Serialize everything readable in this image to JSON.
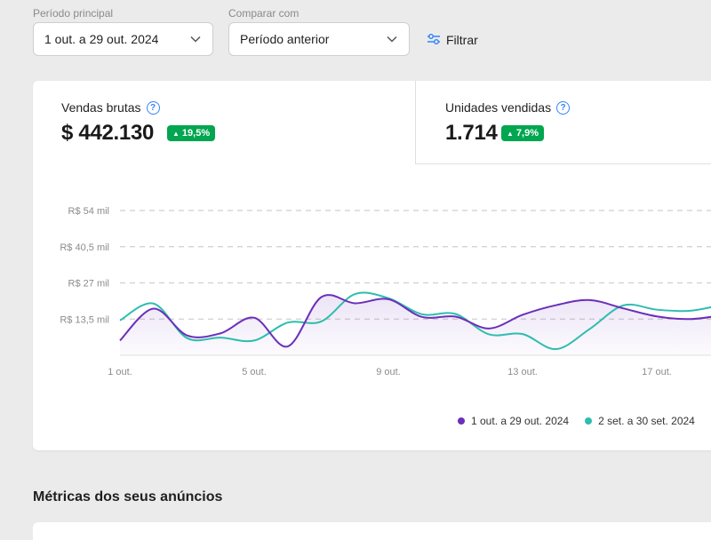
{
  "filters": {
    "main_period": {
      "label": "Período principal",
      "value": "1 out. a 29 out. 2024"
    },
    "compare": {
      "label": "Comparar com",
      "value": "Período anterior"
    },
    "filter_button": "Filtrar"
  },
  "metrics": [
    {
      "title": "Vendas brutas",
      "value": "$ 442.130",
      "change": "19,5%",
      "active": true
    },
    {
      "title": "Unidades vendidas",
      "value": "1.714",
      "change": "7,9%",
      "active": false
    }
  ],
  "colors": {
    "accent": "#3483fa",
    "positive": "#00a650",
    "series_main": "#6b2fba",
    "series_compare": "#2ebdae"
  },
  "chart_data": {
    "type": "line",
    "y_ticks": [
      "R$ 13,5 mil",
      "R$ 27 mil",
      "R$ 40,5 mil",
      "R$ 54 mil"
    ],
    "y_tick_values": [
      13.5,
      27,
      40.5,
      54
    ],
    "ylim": [
      0,
      54
    ],
    "x_ticks": [
      "1 out.",
      "5 out.",
      "9 out.",
      "13 out.",
      "17 out."
    ],
    "x_tick_days": [
      1,
      5,
      9,
      13,
      17
    ],
    "grid": "horizontal dashed",
    "legend_position": "bottom-right",
    "series": [
      {
        "name": "1 out. a 29 out. 2024",
        "color": "#6b2fba",
        "points": [
          [
            1,
            5.5
          ],
          [
            2,
            17.4
          ],
          [
            3,
            7.4
          ],
          [
            4,
            8.2
          ],
          [
            5,
            14
          ],
          [
            6,
            3.3
          ],
          [
            7,
            21.7
          ],
          [
            8,
            19.4
          ],
          [
            9,
            20.9
          ],
          [
            10,
            14.3
          ],
          [
            11,
            14.4
          ],
          [
            12,
            10
          ],
          [
            13,
            15.1
          ],
          [
            14,
            18.7
          ],
          [
            15,
            20.6
          ],
          [
            16,
            17.5
          ],
          [
            17,
            14.5
          ],
          [
            18,
            13.5
          ],
          [
            19,
            15
          ]
        ]
      },
      {
        "name": "2 set. a 30 set. 2024",
        "color": "#2ebdae",
        "points": [
          [
            1,
            13
          ],
          [
            2,
            19.3
          ],
          [
            3,
            6.4
          ],
          [
            4,
            6.6
          ],
          [
            5,
            5.5
          ],
          [
            6,
            12.2
          ],
          [
            7,
            12.6
          ],
          [
            8,
            22.8
          ],
          [
            9,
            21.3
          ],
          [
            10,
            15.3
          ],
          [
            11,
            15.4
          ],
          [
            12,
            7.8
          ],
          [
            13,
            7.9
          ],
          [
            14,
            2.3
          ],
          [
            15,
            9.8
          ],
          [
            16,
            18.6
          ],
          [
            17,
            17
          ],
          [
            18,
            16.6
          ],
          [
            19,
            19
          ]
        ]
      }
    ]
  },
  "section_title": "Métricas dos seus anúncios"
}
